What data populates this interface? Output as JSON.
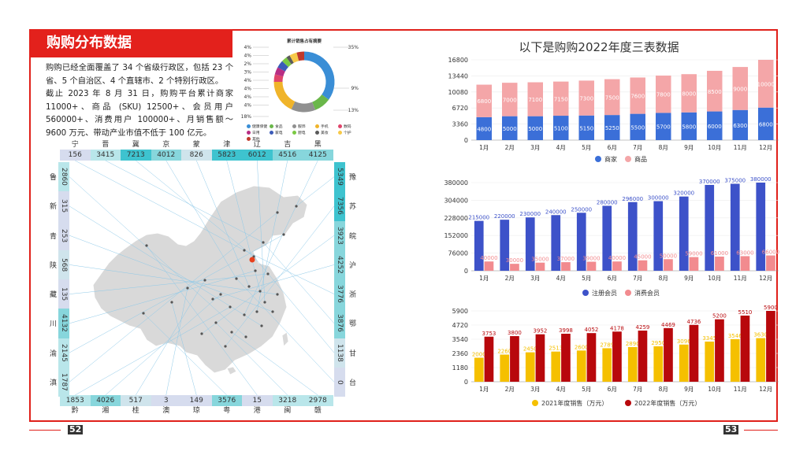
{
  "left_page": {
    "title": "购购分布数据",
    "intro_p1": "购购已经全面覆盖了 34 个省级行政区，包括 23 个省、5 个自治区、4 个直辖市、2 个特别行政区。",
    "intro_p2": "截止 2023 年 8 月 31 日，购购平台累计商家 11000+、商品 (SKU) 12500+、会员用户 560000+、消费用户 100000+、月销售额～9600 万元、带动产业市值不低于 100 亿元。",
    "page_number": "52"
  },
  "donut": {
    "title": "累计销售占有摘要",
    "left_labels": [
      "4%",
      "4%",
      "2%",
      "3%",
      "4%",
      "4%",
      "4%",
      "4%",
      "18%"
    ],
    "right_labels": [
      "35%",
      "9%",
      "13%"
    ],
    "segments": [
      {
        "name": "健康保健",
        "value": 35,
        "color": "#3a8ed6"
      },
      {
        "name": "食品",
        "value": 9,
        "color": "#6ab74a"
      },
      {
        "name": "服饰",
        "value": 13,
        "color": "#909090"
      },
      {
        "name": "手机",
        "value": 18,
        "color": "#f0b42a"
      },
      {
        "name": "数码",
        "value": 4,
        "color": "#e0456b"
      },
      {
        "name": "日用",
        "value": 4,
        "color": "#b82e84"
      },
      {
        "name": "家电",
        "value": 4,
        "color": "#3b5bb8"
      },
      {
        "name": "厨电",
        "value": 3,
        "color": "#7ac943"
      },
      {
        "name": "美妆",
        "value": 2,
        "color": "#5a5a5a"
      },
      {
        "name": "个护",
        "value": 4,
        "color": "#f7c948"
      },
      {
        "name": "其他",
        "value": 4,
        "color": "#c0392b"
      }
    ],
    "legend": [
      {
        "name": "健康保健",
        "color": "#3a8ed6"
      },
      {
        "name": "食品",
        "color": "#6ab74a"
      },
      {
        "name": "服饰",
        "color": "#909090"
      },
      {
        "name": "手机",
        "color": "#f0b42a"
      },
      {
        "name": "数码",
        "color": "#e0456b"
      },
      {
        "name": "日用",
        "color": "#b82e84"
      },
      {
        "name": "家电",
        "color": "#3b5bb8"
      },
      {
        "name": "厨电",
        "color": "#7ac943"
      },
      {
        "name": "美妆",
        "color": "#5a5a5a"
      },
      {
        "name": "个护",
        "color": "#f7c948"
      },
      {
        "name": "其他",
        "color": "#c0392b"
      }
    ]
  },
  "map": {
    "top_provinces": [
      "宁",
      "晋",
      "冀",
      "京",
      "蒙",
      "津",
      "辽",
      "吉",
      "黑"
    ],
    "top_values": [
      "156",
      "3415",
      "7213",
      "4012",
      "826",
      "5823",
      "6012",
      "4516",
      "4125"
    ],
    "bottom_provinces": [
      "黔",
      "湘",
      "桂",
      "澳",
      "琼",
      "粤",
      "港",
      "闽",
      "赣"
    ],
    "bottom_values": [
      "1853",
      "4026",
      "517",
      "3",
      "149",
      "3576",
      "15",
      "3218",
      "2978"
    ],
    "left_provinces": [
      "鲁",
      "新",
      "青",
      "陕",
      "藏",
      "川",
      "渝",
      "滇"
    ],
    "left_values": [
      "2860",
      "315",
      "253",
      "568",
      "135",
      "4132",
      "2145",
      "1787"
    ],
    "right_provinces": [
      "豫",
      "苏",
      "皖",
      "沪",
      "浙",
      "鄂",
      "甘",
      "台"
    ],
    "right_values": [
      "5349",
      "7356",
      "3923",
      "4252",
      "3776",
      "3876",
      "1138",
      "0"
    ]
  },
  "right_page": {
    "title": "以下是购购2022年度三表数据",
    "page_number": "53"
  },
  "chart_data": [
    {
      "type": "bar",
      "stacked": true,
      "categories": [
        "1月",
        "2月",
        "3月",
        "4月",
        "5月",
        "6月",
        "7月",
        "8月",
        "9月",
        "10月",
        "11月",
        "12月"
      ],
      "series": [
        {
          "name": "商家",
          "color": "#3b6fd8",
          "values": [
            4800,
            5000,
            5000,
            5100,
            5150,
            5250,
            5500,
            5700,
            5800,
            6000,
            6300,
            6800
          ]
        },
        {
          "name": "商品",
          "color": "#f4a6a8",
          "values": [
            6800,
            7000,
            7100,
            7150,
            7300,
            7500,
            7600,
            7800,
            8000,
            8500,
            9000,
            10000
          ]
        }
      ],
      "yticks": [
        0,
        3360,
        6720,
        10080,
        13440,
        16800
      ],
      "ylim": [
        0,
        16800
      ]
    },
    {
      "type": "bar",
      "categories": [
        "1月",
        "2月",
        "3月",
        "4月",
        "5月",
        "6月",
        "7月",
        "8月",
        "9月",
        "10月",
        "11月",
        "12月"
      ],
      "series": [
        {
          "name": "注册会员",
          "color": "#3d52c9",
          "values": [
            215000,
            220000,
            230000,
            240000,
            250000,
            280000,
            296000,
            300000,
            320000,
            370000,
            375000,
            380000
          ]
        },
        {
          "name": "消费会员",
          "color": "#f28b8f",
          "values": [
            40000,
            30000,
            35000,
            37000,
            39000,
            40000,
            45000,
            50000,
            59000,
            61000,
            63000,
            66000
          ]
        }
      ],
      "yticks": [
        0,
        76000,
        152000,
        228000,
        304000,
        380000
      ],
      "ylim": [
        0,
        380000
      ]
    },
    {
      "type": "bar",
      "categories": [
        "1月",
        "2月",
        "3月",
        "4月",
        "5月",
        "6月",
        "7月",
        "8月",
        "9月",
        "10月",
        "11月",
        "12月"
      ],
      "series": [
        {
          "name": "2021年度销售（万元）",
          "color": "#f5c000",
          "values": [
            2000,
            2260,
            2450,
            2513,
            2600,
            2789,
            2890,
            2950,
            3096,
            3345,
            3546,
            3630
          ]
        },
        {
          "name": "2022年度销售（万元）",
          "color": "#b8080c",
          "values": [
            3753,
            3800,
            3952,
            3998,
            4052,
            4178,
            4259,
            4469,
            4736,
            5200,
            5510,
            5900
          ]
        }
      ],
      "yticks": [
        0,
        1180,
        2360,
        3540,
        4720,
        5900
      ],
      "ylim": [
        0,
        5900
      ]
    }
  ]
}
